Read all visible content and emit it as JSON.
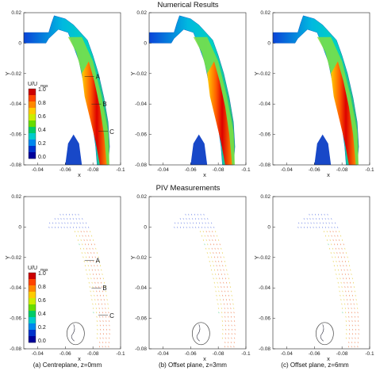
{
  "titles": {
    "top": "Numerical Results",
    "bottom": "PIV Measurements"
  },
  "captions": [
    "(a) Centreplane, z=0mm",
    "(b) Offset plane, z=3mm",
    "(c) Offset plane, z=6mm"
  ],
  "axes": {
    "xlabel": "x",
    "ylabel": "Y",
    "xticks": [
      "-0.04",
      "-0.06",
      "-0.08",
      "-0.1"
    ],
    "yticks": [
      "0.02",
      "0",
      "-0.02",
      "-0.04",
      "-0.06",
      "-0.08"
    ],
    "xlim": [
      -0.03,
      -0.1
    ],
    "ylim": [
      -0.08,
      0.02
    ]
  },
  "legend": {
    "title_main": "U/U",
    "title_sub": "max",
    "levels": [
      "1.0",
      "0.8",
      "0.6",
      "0.4",
      "0.2",
      "0.0"
    ],
    "colors": [
      "#cc0000",
      "#ff4400",
      "#ff8800",
      "#ffcc00",
      "#ccee00",
      "#66dd00",
      "#00cc66",
      "#00cccc",
      "#0088ee",
      "#0033cc",
      "#000099"
    ]
  },
  "annotations": {
    "A": "A",
    "B": "B",
    "C": "C"
  },
  "chart_data": [
    {
      "type": "heatmap",
      "title": "Numerical Results",
      "panel": "(a) Centreplane, z=0mm",
      "xlabel": "x",
      "ylabel": "Y",
      "xlim": [
        -0.03,
        -0.1
      ],
      "ylim": [
        -0.08,
        0.02
      ]
    },
    {
      "type": "heatmap",
      "title": "Numerical Results",
      "panel": "(b) Offset plane, z=3mm",
      "xlabel": "x",
      "ylabel": "Y",
      "xlim": [
        -0.03,
        -0.1
      ],
      "ylim": [
        -0.08,
        0.02
      ]
    },
    {
      "type": "heatmap",
      "title": "Numerical Results",
      "panel": "(c) Offset plane, z=6mm",
      "xlabel": "x",
      "ylabel": "Y",
      "xlim": [
        -0.03,
        -0.1
      ],
      "ylim": [
        -0.08,
        0.02
      ]
    },
    {
      "type": "heatmap",
      "title": "PIV Measurements",
      "panel": "(a) Centreplane, z=0mm",
      "xlabel": "x",
      "ylabel": "Y",
      "xlim": [
        -0.03,
        -0.1
      ],
      "ylim": [
        -0.08,
        0.02
      ]
    },
    {
      "type": "heatmap",
      "title": "PIV Measurements",
      "panel": "(b) Offset plane, z=3mm",
      "xlabel": "x",
      "ylabel": "Y",
      "xlim": [
        -0.03,
        -0.1
      ],
      "ylim": [
        -0.08,
        0.02
      ]
    },
    {
      "type": "heatmap",
      "title": "PIV Measurements",
      "panel": "(c) Offset plane, z=6mm",
      "xlabel": "x",
      "ylabel": "Y",
      "xlim": [
        -0.03,
        -0.1
      ],
      "ylim": [
        -0.08,
        0.02
      ]
    }
  ]
}
